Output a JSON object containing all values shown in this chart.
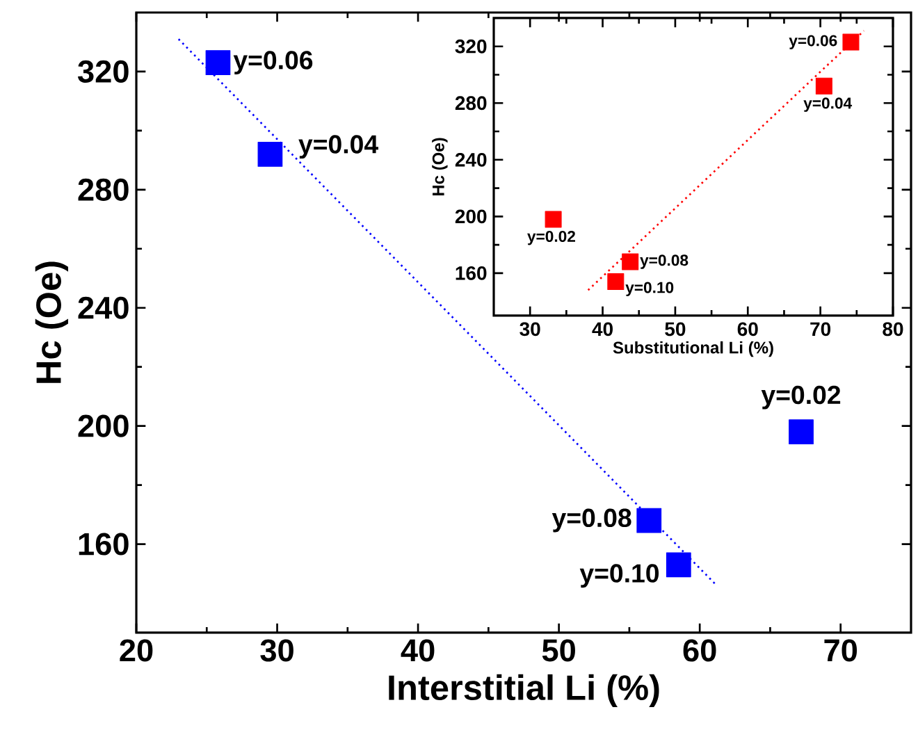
{
  "chart_data": [
    {
      "type": "scatter",
      "xlabel": "Interstitial Li (%)",
      "ylabel": "Hc (Oe)",
      "xlim": [
        20,
        75
      ],
      "ylim": [
        130,
        340
      ],
      "xticks": [
        20,
        30,
        40,
        50,
        60,
        70
      ],
      "yticks": [
        160,
        200,
        240,
        280,
        320
      ],
      "marker": "square",
      "series": [
        {
          "color": "#0000ff",
          "x": [
            67.2,
            29.5,
            25.8,
            56.4,
            58.5
          ],
          "values": [
            198,
            292,
            323,
            168,
            153
          ]
        },
        {
          "type": "line",
          "color": "#0000ff",
          "marker": "none",
          "line_style": "dotted",
          "x": [
            23,
            61.2
          ],
          "values": [
            331,
            146
          ]
        }
      ],
      "annotations": [
        {
          "text": "y=0.02",
          "x": 67.2,
          "y": 198
        },
        {
          "text": "y=0.04",
          "x": 29.5,
          "y": 292
        },
        {
          "text": "y=0.06",
          "x": 25.8,
          "y": 323
        },
        {
          "text": "y=0.08",
          "x": 56.4,
          "y": 168
        },
        {
          "text": "y=0.10",
          "x": 58.5,
          "y": 153
        }
      ]
    },
    {
      "type": "scatter",
      "xlabel": "Substitutional Li (%)",
      "ylabel": "Hc (Oe)",
      "xlim": [
        25,
        80
      ],
      "ylim": [
        130,
        340
      ],
      "xticks": [
        30,
        40,
        50,
        60,
        70,
        80
      ],
      "yticks": [
        160,
        200,
        240,
        280,
        320
      ],
      "marker": "square",
      "series": [
        {
          "color": "#ff0000",
          "x": [
            33.2,
            70.5,
            74.2,
            43.8,
            41.8
          ],
          "values": [
            198,
            292,
            323,
            168,
            154
          ]
        },
        {
          "type": "line",
          "color": "#ff0000",
          "marker": "none",
          "line_style": "dotted",
          "x": [
            38,
            76
          ],
          "values": [
            148,
            331
          ]
        }
      ],
      "annotations": [
        {
          "text": "y=0.02",
          "x": 33.2,
          "y": 198
        },
        {
          "text": "y=0.04",
          "x": 70.5,
          "y": 292
        },
        {
          "text": "y=0.06",
          "x": 74.2,
          "y": 323
        },
        {
          "text": "y=0.08",
          "x": 43.8,
          "y": 168
        },
        {
          "text": "y=0.10",
          "x": 41.8,
          "y": 154
        }
      ]
    }
  ]
}
